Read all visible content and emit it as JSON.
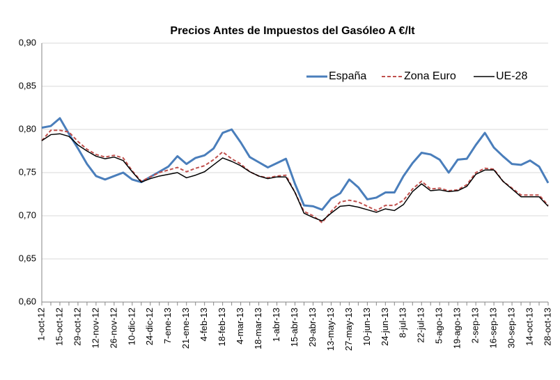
{
  "chart_data": {
    "type": "line",
    "title": "Precios Antes de Impuestos del Gasóleo A €/lt",
    "categories": [
      "1-oct-12",
      null,
      "15-oct-12",
      null,
      "29-oct-12",
      null,
      "12-nov-12",
      null,
      "26-nov-12",
      null,
      "10-dic-12",
      null,
      "24-dic-12",
      null,
      "7-ene-13",
      null,
      "21-ene-13",
      null,
      "4-feb-13",
      null,
      "18-feb-13",
      null,
      "4-mar-13",
      null,
      "18-mar-13",
      null,
      "1-abr-13",
      null,
      "15-abr-13",
      null,
      "29-abr-13",
      null,
      "13-may-13",
      null,
      "27-may-13",
      null,
      "10-jun-13",
      null,
      "24-jun-13",
      null,
      "8-jul-13",
      null,
      "22-jul-13",
      null,
      "5-ago-13",
      null,
      "19-ago-13",
      null,
      "2-sep-13",
      null,
      "16-sep-13",
      null,
      "30-sep-13",
      null,
      "14-oct-13",
      null,
      "28-oct-13"
    ],
    "series": [
      {
        "name": "España",
        "color": "#4a7ebb",
        "dash": false,
        "values": [
          0.802,
          0.804,
          0.813,
          0.795,
          0.778,
          0.76,
          0.746,
          0.742,
          0.746,
          0.75,
          0.742,
          0.739,
          0.745,
          0.751,
          0.757,
          0.769,
          0.76,
          0.767,
          0.77,
          0.778,
          0.796,
          0.8,
          0.785,
          0.768,
          0.762,
          0.756,
          0.761,
          0.766,
          0.737,
          0.712,
          0.711,
          0.707,
          0.72,
          0.726,
          0.742,
          0.733,
          0.719,
          0.721,
          0.727,
          0.727,
          0.746,
          0.761,
          0.773,
          0.771,
          0.765,
          0.75,
          0.765,
          0.766,
          0.782,
          0.796,
          0.779,
          0.769,
          0.76,
          0.759,
          0.764,
          0.757,
          0.738
        ]
      },
      {
        "name": "Zona Euro",
        "color": "#c0504d",
        "dash": true,
        "values": [
          0.787,
          0.799,
          0.799,
          0.797,
          0.786,
          0.777,
          0.771,
          0.768,
          0.77,
          0.767,
          0.752,
          0.74,
          0.745,
          0.75,
          0.753,
          0.756,
          0.751,
          0.755,
          0.758,
          0.765,
          0.774,
          0.766,
          0.76,
          0.751,
          0.746,
          0.744,
          0.746,
          0.747,
          0.727,
          0.705,
          0.7,
          0.692,
          0.705,
          0.716,
          0.718,
          0.716,
          0.711,
          0.706,
          0.712,
          0.712,
          0.718,
          0.731,
          0.74,
          0.731,
          0.732,
          0.729,
          0.73,
          0.736,
          0.75,
          0.755,
          0.754,
          0.74,
          0.732,
          0.724,
          0.724,
          0.724,
          0.712
        ]
      },
      {
        "name": "UE-28",
        "color": "#000000",
        "dash": false,
        "values": [
          0.787,
          0.794,
          0.795,
          0.792,
          0.782,
          0.775,
          0.769,
          0.766,
          0.768,
          0.764,
          0.751,
          0.739,
          0.743,
          0.746,
          0.748,
          0.75,
          0.744,
          0.747,
          0.751,
          0.759,
          0.767,
          0.763,
          0.758,
          0.751,
          0.746,
          0.743,
          0.745,
          0.745,
          0.727,
          0.703,
          0.698,
          0.694,
          0.703,
          0.711,
          0.712,
          0.71,
          0.707,
          0.704,
          0.708,
          0.706,
          0.713,
          0.728,
          0.737,
          0.729,
          0.73,
          0.728,
          0.729,
          0.734,
          0.748,
          0.753,
          0.753,
          0.74,
          0.731,
          0.722,
          0.722,
          0.722,
          0.711
        ]
      }
    ],
    "ylim": [
      0.6,
      0.9
    ],
    "yticks": [
      {
        "value": 0.6,
        "label": "0,60"
      },
      {
        "value": 0.65,
        "label": "0,65"
      },
      {
        "value": 0.7,
        "label": "0,70"
      },
      {
        "value": 0.75,
        "label": "0,75"
      },
      {
        "value": 0.8,
        "label": "0,80"
      },
      {
        "value": 0.85,
        "label": "0,85"
      },
      {
        "value": 0.9,
        "label": "0,90"
      }
    ],
    "grid": true,
    "legend": "top-right"
  }
}
